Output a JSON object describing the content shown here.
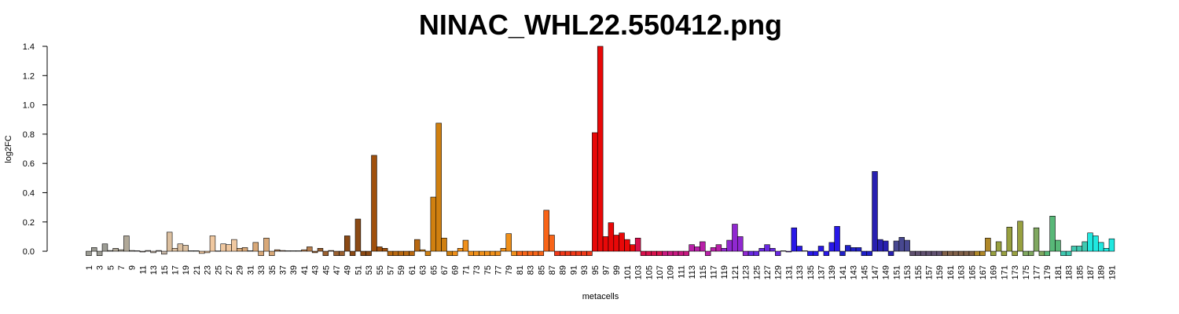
{
  "chart_data": {
    "type": "bar",
    "title": "NINAC_WHL22.550412.png",
    "x_label": "metacells",
    "y_label": "log2FC",
    "categories": [
      1,
      null,
      3,
      null,
      5,
      null,
      7,
      null,
      9,
      null,
      11,
      null,
      13,
      null,
      15,
      null,
      17,
      null,
      19,
      null,
      21,
      null,
      23,
      null,
      25,
      null,
      27,
      null,
      29,
      null,
      31,
      null,
      33,
      null,
      35,
      null,
      37,
      null,
      39,
      null,
      41,
      null,
      43,
      null,
      45,
      null,
      47,
      null,
      49,
      null,
      51,
      null,
      53,
      null,
      55,
      null,
      57,
      null,
      59,
      null,
      61,
      null,
      63,
      null,
      65,
      null,
      67,
      null,
      69,
      null,
      71,
      null,
      73,
      null,
      75,
      null,
      77,
      null,
      79,
      null,
      81,
      null,
      83,
      null,
      85,
      null,
      87,
      null,
      89,
      null,
      91,
      null,
      93,
      null,
      95,
      null,
      97,
      null,
      99,
      null,
      101,
      null,
      103,
      null,
      105,
      null,
      107,
      null,
      109,
      null,
      111,
      null,
      113,
      null,
      115,
      null,
      117,
      null,
      119,
      null,
      121,
      null,
      123,
      null,
      125,
      null,
      127,
      null,
      129,
      null,
      131,
      null,
      133,
      null,
      135,
      null,
      137,
      null,
      139,
      null,
      141,
      null,
      143,
      null,
      145,
      null,
      147,
      null,
      149,
      null,
      151,
      null,
      153,
      null,
      155,
      null,
      157,
      null,
      159,
      null,
      161,
      null,
      163,
      null,
      165,
      null,
      167,
      null,
      169,
      null,
      171,
      null,
      173,
      null,
      175,
      null,
      177,
      null,
      179,
      null,
      181,
      null,
      183,
      null,
      185,
      null,
      187,
      null,
      189,
      null,
      191
    ],
    "values": [
      -0.03,
      0.025,
      -0.03,
      0.05,
      0.005,
      0.02,
      0.01,
      0.105,
      0.005,
      0.003,
      -0.005,
      0.005,
      -0.01,
      0.005,
      -0.02,
      0.13,
      0.02,
      0.05,
      0.04,
      0.003,
      0.003,
      -0.015,
      -0.01,
      0.105,
      0.002,
      0.05,
      0.045,
      0.08,
      0.02,
      0.025,
      0.003,
      0.06,
      -0.03,
      0.09,
      -0.03,
      0.01,
      0.005,
      0.003,
      0.003,
      0.003,
      0.01,
      0.03,
      -0.01,
      0.02,
      -0.03,
      0.005,
      -0.03,
      -0.03,
      0.105,
      -0.03,
      0.22,
      -0.03,
      -0.03,
      0.655,
      0.03,
      0.02,
      -0.03,
      -0.03,
      -0.03,
      -0.03,
      -0.03,
      0.08,
      0.01,
      -0.03,
      0.37,
      0.875,
      0.09,
      -0.03,
      -0.03,
      0.02,
      0.075,
      -0.03,
      -0.03,
      -0.03,
      -0.03,
      -0.03,
      -0.03,
      0.02,
      0.12,
      -0.03,
      -0.03,
      -0.03,
      -0.03,
      -0.03,
      -0.03,
      0.28,
      0.11,
      -0.03,
      -0.03,
      -0.03,
      -0.03,
      -0.03,
      -0.03,
      -0.03,
      0.81,
      1.4,
      0.1,
      0.195,
      0.11,
      0.125,
      0.08,
      0.045,
      0.09,
      -0.03,
      -0.03,
      -0.03,
      -0.03,
      -0.03,
      -0.03,
      -0.03,
      -0.03,
      -0.03,
      0.045,
      0.03,
      0.065,
      -0.03,
      0.025,
      0.045,
      0.02,
      0.075,
      0.185,
      0.1,
      -0.03,
      -0.03,
      -0.03,
      0.02,
      0.045,
      0.02,
      -0.03,
      0.003,
      -0.005,
      0.16,
      0.035,
      0.003,
      -0.03,
      -0.03,
      0.035,
      -0.03,
      0.06,
      0.17,
      -0.03,
      0.04,
      0.025,
      0.025,
      -0.03,
      -0.03,
      0.545,
      0.08,
      0.07,
      -0.03,
      0.07,
      0.095,
      0.075,
      -0.03,
      -0.03,
      -0.03,
      -0.03,
      -0.03,
      -0.03,
      -0.03,
      -0.03,
      -0.03,
      -0.03,
      -0.03,
      -0.03,
      -0.03,
      -0.03,
      0.09,
      -0.03,
      0.065,
      -0.03,
      0.165,
      -0.03,
      0.205,
      -0.03,
      -0.03,
      0.16,
      -0.03,
      -0.03,
      0.24,
      0.075,
      -0.03,
      -0.03,
      0.035,
      0.035,
      0.065,
      0.125,
      0.105,
      0.06,
      0.02,
      0.085
    ],
    "colors": [
      "#9c9c94",
      "#9c9c94",
      "#9c9c94",
      "#9c9c94",
      "#b0a898",
      "#b0a898",
      "#b0a898",
      "#b0a898",
      "#b0a898",
      "#c8b8a8",
      "#c8b8a8",
      "#c8b8a8",
      "#c8b8a8",
      "#c8b8a8",
      "#c8b8a8",
      "#dcc0a0",
      "#dcc0a0",
      "#dcc0a0",
      "#dcc0a0",
      "#dcc0a0",
      "#f0c8a0",
      "#f0c8a0",
      "#f0c8a0",
      "#f0c8a0",
      "#f0c8a0",
      "#f0c8a0",
      "#f0c8a0",
      "#f0c8a0",
      "#d8a878",
      "#d8a878",
      "#d8a878",
      "#d8a878",
      "#d8a878",
      "#d8a878",
      "#d8a878",
      "#b88050",
      "#b88050",
      "#b88050",
      "#b88050",
      "#b88050",
      "#b88050",
      "#b88050",
      "#9a6030",
      "#9a6030",
      "#9a6030",
      "#9a6030",
      "#9a6030",
      "#9a6030",
      "#8b4a15",
      "#8b4a15",
      "#8b4a15",
      "#8b4a15",
      "#8b4a15",
      "#a0500c",
      "#a0500c",
      "#a0500c",
      "#b86810",
      "#b86810",
      "#b86810",
      "#b86810",
      "#b86810",
      "#b86810",
      "#d08010",
      "#d08010",
      "#d08010",
      "#d08010",
      "#d08010",
      "#d08010",
      "#f0901a",
      "#f0901a",
      "#f0901a",
      "#f0901a",
      "#f0901a",
      "#f0901a",
      "#f0901a",
      "#f0901a",
      "#f0901a",
      "#f0901a",
      "#f0901a",
      "#f0901a",
      "#f86418",
      "#f86418",
      "#f86418",
      "#f86418",
      "#f86418",
      "#f86418",
      "#f86418",
      "#f03818",
      "#f03818",
      "#f03818",
      "#f03818",
      "#f03818",
      "#f03818",
      "#f03818",
      "#e80808",
      "#e80808",
      "#e80808",
      "#e80808",
      "#e80808",
      "#e80808",
      "#e80808",
      "#e80808",
      "#d8104c",
      "#d8104c",
      "#d8104c",
      "#d8104c",
      "#d8104c",
      "#c81880",
      "#c81880",
      "#c81880",
      "#c81880",
      "#c81880",
      "#b820a8",
      "#b820a8",
      "#b820a8",
      "#b820a8",
      "#b820a8",
      "#b820a8",
      "#9028d0",
      "#9028d0",
      "#9028d0",
      "#9028d0",
      "#9028d0",
      "#6828e0",
      "#6828e0",
      "#6828e0",
      "#6828e0",
      "#6828e0",
      "#6828e0",
      "#6828e0",
      "#6828e0",
      "#2818e8",
      "#2818e8",
      "#2818e8",
      "#2818e8",
      "#2818e8",
      "#2818e8",
      "#2818e8",
      "#2818e8",
      "#2818e8",
      "#2020c8",
      "#2020c8",
      "#2020c8",
      "#2020c8",
      "#2020c8",
      "#2020c8",
      "#2820b0",
      "#2820b0",
      "#2820b0",
      "#2820b0",
      "#484890",
      "#484890",
      "#484890",
      "#605070",
      "#605070",
      "#605070",
      "#605070",
      "#605070",
      "#605070",
      "#806048",
      "#806048",
      "#806048",
      "#806048",
      "#806048",
      "#806048",
      "#b08828",
      "#b08828",
      "#b08828",
      "#98a040",
      "#98a040",
      "#98a040",
      "#98a040",
      "#98a040",
      "#98a040",
      "#80a860",
      "#80a860",
      "#80a860",
      "#80a860",
      "#58b878",
      "#58b878",
      "#58b878",
      "#40c8b0",
      "#40c8b0",
      "#40c8b0",
      "#40c8b0",
      "#40c8b0",
      "#20e8e0",
      "#20e8e0",
      "#20e8e0",
      "#20e8e0",
      "#20e8e0"
    ],
    "ylim": [
      -0.04,
      1.4
    ],
    "yticks": [
      {
        "value": 0,
        "label": "0.0"
      },
      0.2,
      0.4,
      0.6,
      0.8,
      {
        "value": 1,
        "label": "1.0"
      },
      1.2,
      1.4
    ]
  }
}
